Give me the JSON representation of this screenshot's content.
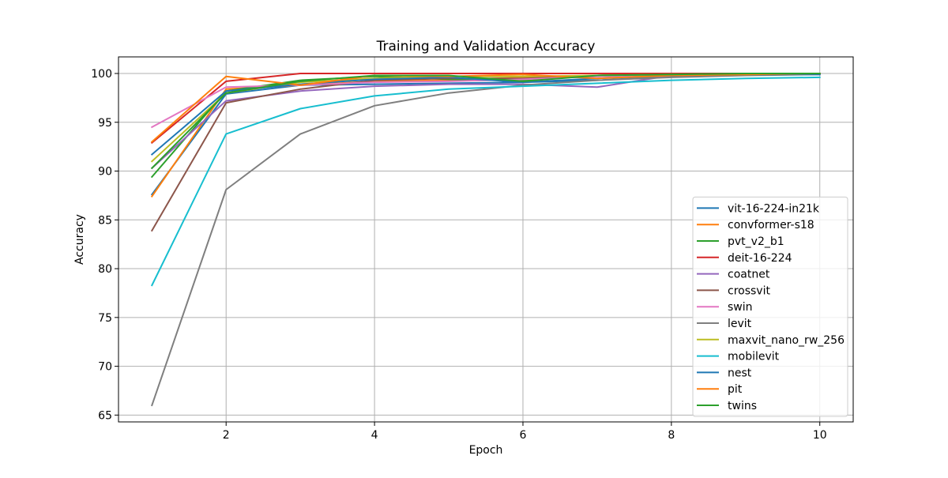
{
  "chart_data": {
    "type": "line",
    "title": "Training and Validation Accuracy",
    "xlabel": "Epoch",
    "ylabel": "Accuracy",
    "xlim": [
      0.55,
      10.45
    ],
    "ylim": [
      64.3,
      101.7
    ],
    "xticks": [
      2,
      4,
      6,
      8,
      10
    ],
    "yticks": [
      65,
      70,
      75,
      80,
      85,
      90,
      95,
      100
    ],
    "grid": true,
    "legend_position": "lower-right",
    "x": [
      1,
      2,
      3,
      4,
      5,
      6,
      7,
      8,
      9,
      10
    ],
    "series": [
      {
        "name": "vit-16-224-in21k",
        "color": "#1f77b4",
        "values": [
          87.6,
          97.9,
          98.8,
          98.9,
          99.0,
          99.1,
          99.3,
          99.7,
          99.9,
          100.0
        ]
      },
      {
        "name": "convformer-s18",
        "color": "#ff7f0e",
        "values": [
          87.4,
          98.4,
          98.8,
          99.2,
          99.3,
          99.6,
          99.8,
          99.9,
          100.0,
          100.0
        ]
      },
      {
        "name": "pvt_v2_b1",
        "color": "#2ca02c",
        "values": [
          89.4,
          98.2,
          99.3,
          99.7,
          99.4,
          99.3,
          99.8,
          99.9,
          100.0,
          100.0
        ]
      },
      {
        "name": "deit-16-224",
        "color": "#d62728",
        "values": [
          92.9,
          99.2,
          100.0,
          100.0,
          100.0,
          100.0,
          100.0,
          100.0,
          100.0,
          100.0
        ]
      },
      {
        "name": "coatnet",
        "color": "#9467bd",
        "values": [
          90.3,
          97.2,
          98.2,
          98.7,
          98.9,
          98.9,
          98.6,
          99.8,
          99.9,
          99.9
        ]
      },
      {
        "name": "crossvit",
        "color": "#8c564b",
        "values": [
          83.9,
          97.0,
          98.4,
          99.3,
          99.5,
          99.5,
          99.8,
          99.9,
          100.0,
          100.0
        ]
      },
      {
        "name": "swin",
        "color": "#e377c2",
        "values": [
          94.5,
          98.6,
          98.8,
          99.1,
          99.2,
          99.4,
          99.7,
          99.8,
          99.9,
          100.0
        ]
      },
      {
        "name": "levit",
        "color": "#7f7f7f",
        "values": [
          66.0,
          88.1,
          93.8,
          96.7,
          98.0,
          98.8,
          99.3,
          99.6,
          99.8,
          99.9
        ]
      },
      {
        "name": "maxvit_nano_rw_256",
        "color": "#bcbd22",
        "values": [
          91.0,
          98.0,
          99.1,
          99.5,
          99.7,
          99.7,
          99.8,
          99.9,
          99.9,
          100.0
        ]
      },
      {
        "name": "mobilevit",
        "color": "#17becf",
        "values": [
          78.3,
          93.8,
          96.4,
          97.7,
          98.4,
          98.7,
          99.0,
          99.3,
          99.5,
          99.6
        ]
      },
      {
        "name": "nest",
        "color": "#1f77b4",
        "values": [
          91.7,
          98.2,
          98.9,
          99.4,
          99.6,
          99.1,
          99.5,
          99.8,
          99.9,
          99.9
        ]
      },
      {
        "name": "pit",
        "color": "#ff7f0e",
        "values": [
          93.0,
          99.7,
          98.8,
          99.8,
          99.7,
          99.9,
          99.5,
          99.8,
          99.9,
          100.0
        ]
      },
      {
        "name": "twins",
        "color": "#2ca02c",
        "values": [
          90.3,
          98.0,
          99.2,
          99.8,
          99.8,
          99.2,
          99.8,
          99.9,
          100.0,
          100.0
        ]
      }
    ]
  }
}
